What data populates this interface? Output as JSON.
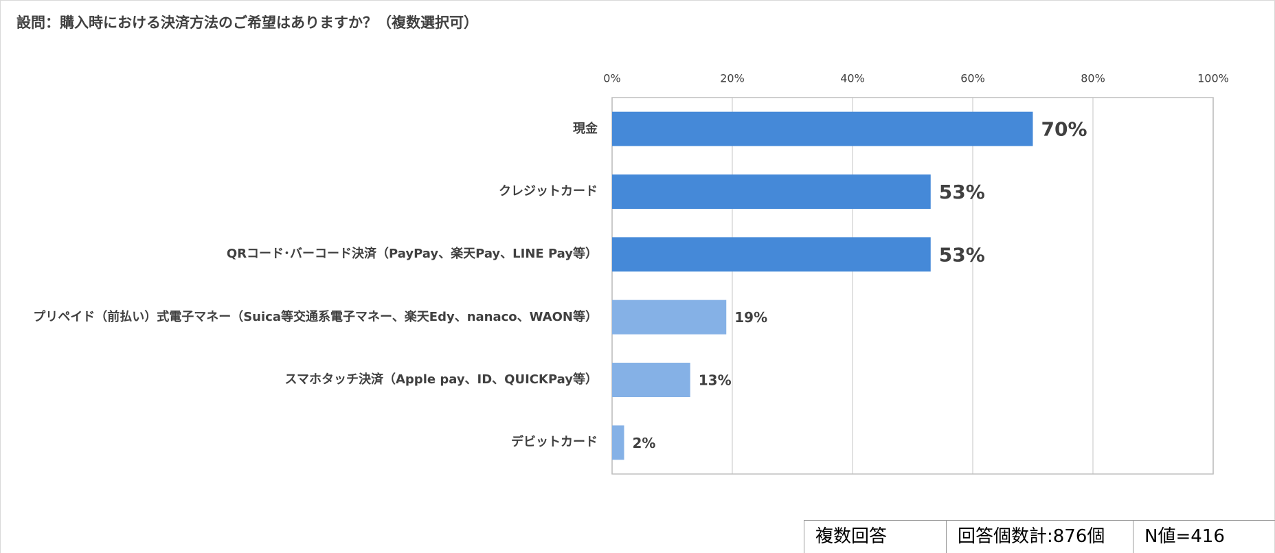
{
  "chart_data": {
    "type": "barh",
    "title": "設問：購入時における決済方法のご希望はありますか？（複数選択可）",
    "categories": [
      "現金",
      "クレジットカード",
      "QRコード･バーコード決済（PayPay、楽天Pay、LINE Pay等）",
      "プリペイド（前払い）式電子マネー（Suica等交通系電子マネー、楽天Edy、nanaco、WAON等）",
      "スマホタッチ決済（Apple pay、ID、QUICKPay等）",
      "デビットカード"
    ],
    "values": [
      70,
      53,
      53,
      19,
      13,
      2
    ],
    "value_labels": [
      "70%",
      "53%",
      "53%",
      "19%",
      "13%",
      "2%"
    ],
    "colors": [
      "#4589d8",
      "#4589d8",
      "#4589d8",
      "#85b1e6",
      "#85b1e6",
      "#85b1e6"
    ],
    "xlim": [
      0,
      100
    ],
    "xticks": [
      {
        "value": 0,
        "label": "0%"
      },
      {
        "value": 20,
        "label": "20%"
      },
      {
        "value": 40,
        "label": "40%"
      },
      {
        "value": 60,
        "label": "60%"
      },
      {
        "value": 80,
        "label": "80%"
      },
      {
        "value": 100,
        "label": "100%"
      }
    ],
    "grid": true
  },
  "footer_table": [
    "複数回答",
    "回答個数計:876個",
    "N値=416"
  ]
}
